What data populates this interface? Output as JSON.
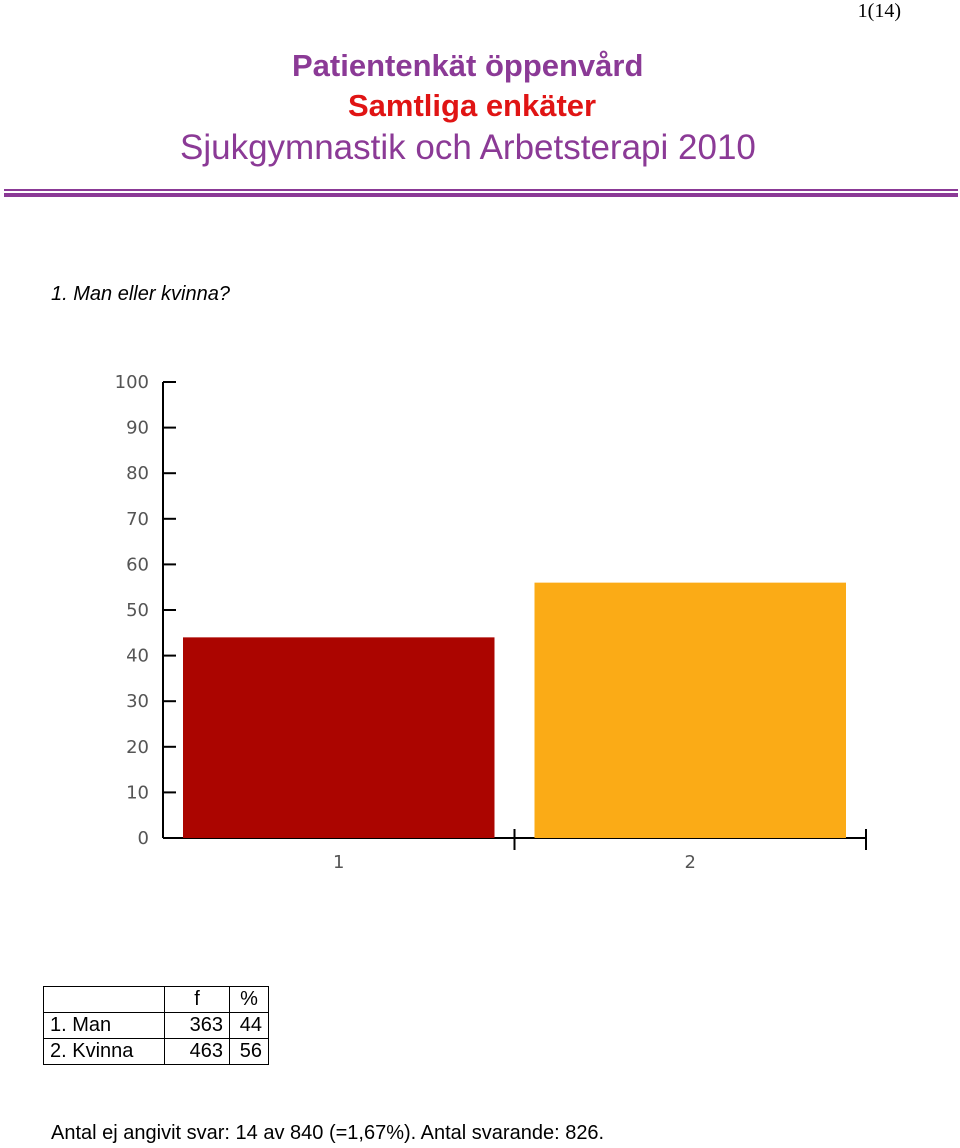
{
  "page": {
    "number": "1(14)"
  },
  "header": {
    "line1": "Patientenkät öppenvård",
    "line2": "Samtliga enkäter",
    "line3": "Sjukgymnastik och Arbetsterapi 2010",
    "colors": {
      "line1": "#8b3a96",
      "line2": "#e01414",
      "line3": "#8b3a96",
      "divider": "#8b3a96"
    }
  },
  "question": {
    "text": "1. Man eller kvinna?"
  },
  "chart_data": {
    "type": "bar",
    "categories": [
      "1",
      "2"
    ],
    "values": [
      44,
      56
    ],
    "colors": [
      "#ab0500",
      "#fbab16"
    ],
    "title": "",
    "xlabel": "",
    "ylabel": "",
    "ylim": [
      0,
      100
    ],
    "yticks": [
      "0",
      "10",
      "20",
      "30",
      "40",
      "50",
      "60",
      "70",
      "80",
      "90",
      "100"
    ],
    "grid": false,
    "legend": "none"
  },
  "table": {
    "headers": [
      "",
      "f",
      "%"
    ],
    "rows": [
      [
        "1. Man",
        "363",
        "44"
      ],
      [
        "2. Kvinna",
        "463",
        "56"
      ]
    ]
  },
  "footer": {
    "note": "Antal ej angivit svar: 14 av 840 (=1,67%). Antal svarande:  826."
  }
}
